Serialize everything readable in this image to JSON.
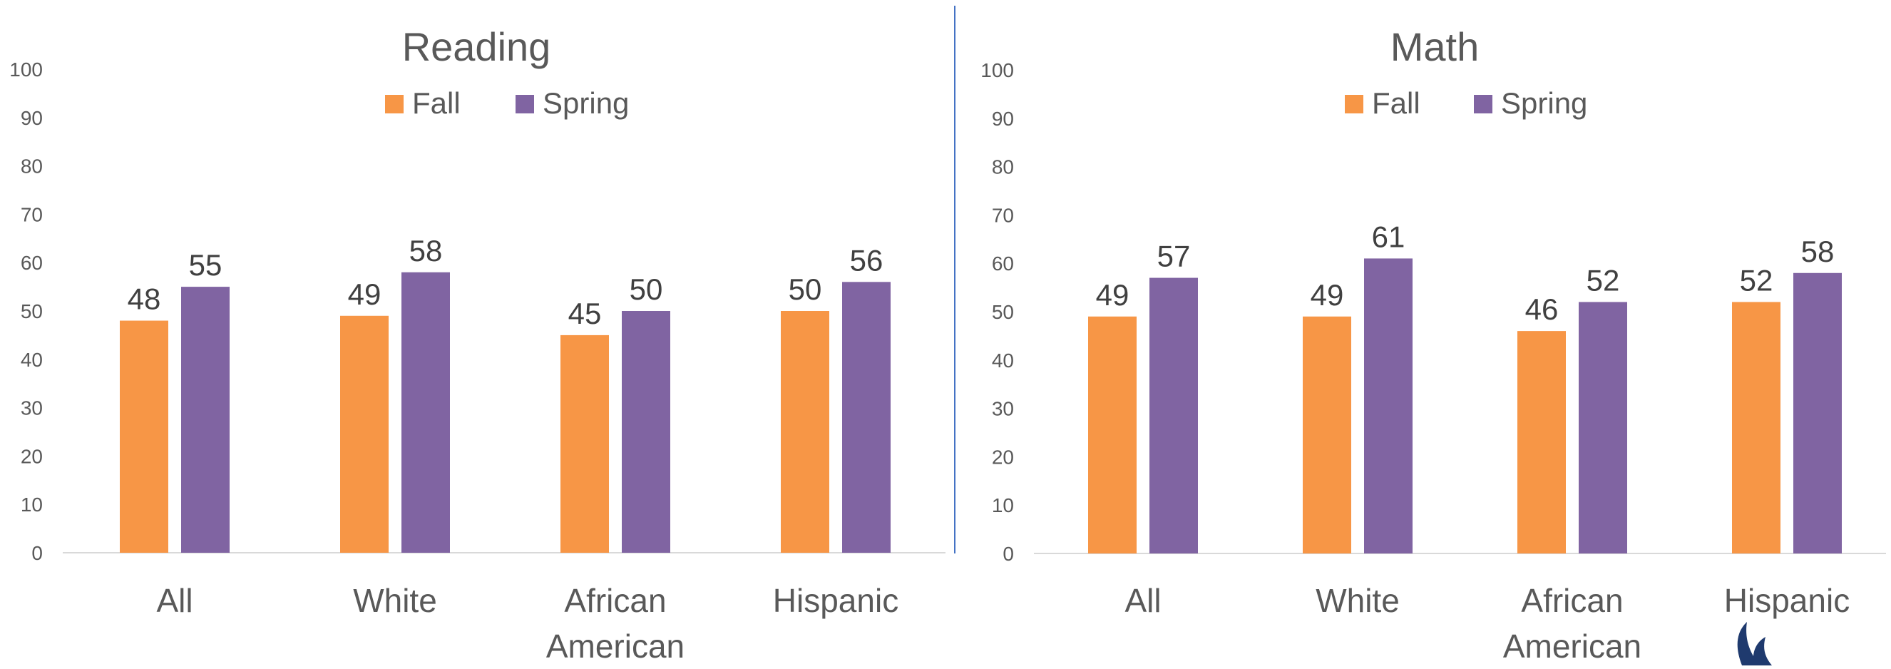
{
  "colors": {
    "fall": "#F79646",
    "spring": "#8064A2",
    "text": "#595959",
    "label": "#404040",
    "axis": "#D9D9D9",
    "divider": "#4472C4",
    "logo": "#1F3A6E"
  },
  "chart_data": [
    {
      "type": "bar",
      "title": "Reading",
      "categories": [
        "All",
        "White",
        "African American",
        "Hispanic"
      ],
      "series": [
        {
          "name": "Fall",
          "values": [
            48,
            49,
            45,
            50
          ]
        },
        {
          "name": "Spring",
          "values": [
            55,
            58,
            50,
            56
          ]
        }
      ],
      "ylim": [
        0,
        100
      ],
      "yticks": [
        "0",
        "10",
        "20",
        "30",
        "40",
        "50",
        "60",
        "70",
        "80",
        "90",
        "100"
      ],
      "grid": false,
      "legend": "top-center"
    },
    {
      "type": "bar",
      "title": "Math",
      "categories": [
        "All",
        "White",
        "African American",
        "Hispanic"
      ],
      "series": [
        {
          "name": "Fall",
          "values": [
            49,
            49,
            46,
            52
          ]
        },
        {
          "name": "Spring",
          "values": [
            57,
            61,
            52,
            58
          ]
        }
      ],
      "ylim": [
        0,
        100
      ],
      "yticks": [
        "0",
        "10",
        "20",
        "30",
        "40",
        "50",
        "60",
        "70",
        "80",
        "90",
        "100"
      ],
      "grid": false,
      "legend": "top-center"
    }
  ]
}
